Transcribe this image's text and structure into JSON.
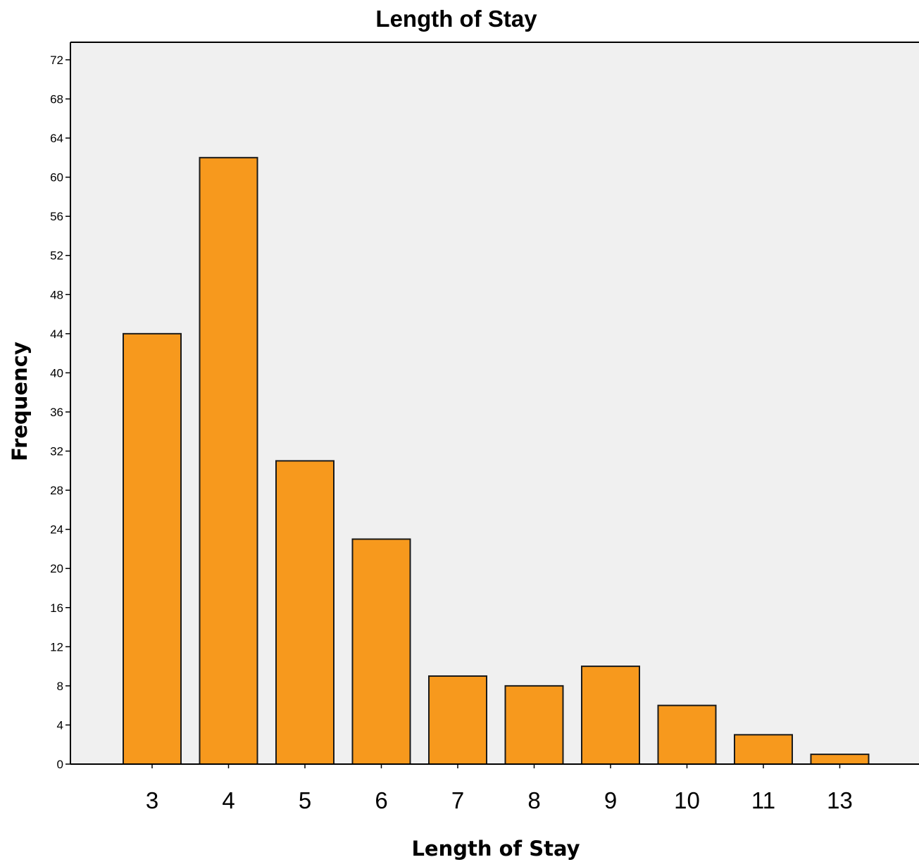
{
  "chart_data": {
    "type": "bar",
    "title": "Length of Stay",
    "xlabel": "Length of Stay",
    "ylabel": "Frequency",
    "categories": [
      "3",
      "4",
      "5",
      "6",
      "7",
      "8",
      "9",
      "10",
      "11",
      "13"
    ],
    "values": [
      44,
      62,
      31,
      23,
      9,
      8,
      10,
      6,
      3,
      1
    ],
    "ylim": [
      0,
      72
    ],
    "yticks": [
      0,
      4,
      8,
      12,
      16,
      20,
      24,
      28,
      32,
      36,
      40,
      44,
      48,
      52,
      56,
      60,
      64,
      68,
      72
    ],
    "grid": false,
    "legend": "none",
    "colors": {
      "bar_fill": "#f7991d",
      "bar_stroke": "#1a1a1a",
      "plot_background": "#f0f0f0",
      "page_background": "#ffffff"
    }
  }
}
